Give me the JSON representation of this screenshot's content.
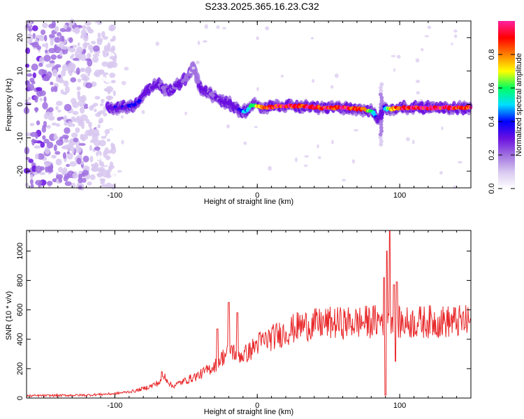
{
  "figure_title": "S233.2025.365.16.23.C32",
  "chart_data": [
    {
      "type": "heatmap",
      "title": "S233.2025.365.16.23.C32",
      "xlabel": "Height of straight line (km)",
      "ylabel": "Frequency (Hz)",
      "xlim": [
        -162,
        150
      ],
      "ylim": [
        -25,
        25
      ],
      "x_ticks": [
        -100,
        0,
        100
      ],
      "y_ticks": [
        -20,
        -10,
        0,
        10,
        20
      ],
      "x_tick_labels": [
        "-100",
        "0",
        "100"
      ],
      "y_tick_labels": [
        "-20",
        "-10",
        "0",
        "10",
        "20"
      ],
      "colormap": [
        "#ffffff",
        "#d8c8f0",
        "#a070e0",
        "#6a10e0",
        "#0000ff",
        "#00e0ff",
        "#00ff60",
        "#ffff00",
        "#ff8000",
        "#ff0000",
        "#ff20a0"
      ],
      "colorbar": {
        "label": "Normalized spectral amplitude",
        "range": [
          0.0,
          1.0
        ],
        "ticks": [
          0.0,
          0.2,
          0.4,
          0.6,
          0.8
        ],
        "tick_labels": [
          "0.0",
          "0.2",
          "0.4",
          "0.6",
          "0.8"
        ]
      },
      "ridge": {
        "description_points_x": [
          -105,
          -95,
          -85,
          -78,
          -70,
          -62,
          -55,
          -50,
          -45,
          -40,
          -32,
          -25,
          -18,
          -12,
          -8,
          -3,
          5,
          15,
          30,
          45,
          60,
          75,
          82,
          85,
          88,
          92,
          100,
          120,
          150
        ],
        "frequency_hz": [
          -1,
          -1,
          0,
          4,
          6,
          4,
          6,
          8,
          11,
          5,
          3,
          1,
          0,
          -2,
          -2,
          0,
          -1,
          -0.5,
          -0.5,
          -1,
          -1,
          -1.5,
          -2.5,
          -5,
          -1,
          -1.5,
          -1,
          -1,
          -1
        ],
        "amplitude": [
          0.3,
          0.35,
          0.4,
          0.3,
          0.25,
          0.25,
          0.3,
          0.2,
          0.15,
          0.3,
          0.25,
          0.3,
          0.3,
          0.35,
          0.5,
          0.6,
          0.85,
          0.95,
          0.95,
          0.9,
          0.95,
          0.85,
          0.5,
          0.3,
          0.3,
          0.7,
          0.9,
          0.95,
          0.95
        ]
      },
      "noise_region_x": [
        -162,
        -100
      ]
    },
    {
      "type": "line",
      "xlabel": "Height of straight line (km)",
      "ylabel": "SNR (10 * v/v)",
      "xlim": [
        -162,
        150
      ],
      "ylim": [
        0,
        1140
      ],
      "x_ticks": [
        -100,
        0,
        100
      ],
      "y_ticks": [
        0,
        200,
        400,
        600,
        800,
        1000
      ],
      "x_tick_labels": [
        "-100",
        "0",
        "100"
      ],
      "y_tick_labels": [
        "0",
        "200",
        "400",
        "600",
        "800",
        "1000"
      ],
      "line_color": "#e8282a",
      "series": [
        {
          "name": "SNR",
          "envelope_x": [
            -162,
            -120,
            -100,
            -85,
            -75,
            -68,
            -65,
            -60,
            -50,
            -40,
            -30,
            -22,
            -20,
            -15,
            -10,
            -5,
            0,
            10,
            20,
            30,
            40,
            50,
            60,
            70,
            80,
            85,
            88,
            90,
            92,
            95,
            98,
            100,
            110,
            120,
            130,
            140,
            150
          ],
          "envelope_y": [
            15,
            20,
            30,
            50,
            80,
            110,
            150,
            80,
            120,
            160,
            220,
            300,
            350,
            300,
            290,
            320,
            370,
            410,
            450,
            490,
            500,
            510,
            510,
            515,
            520,
            525,
            540,
            500,
            560,
            560,
            520,
            510,
            515,
            520,
            520,
            520,
            520
          ],
          "spikes": [
            {
              "x": -67,
              "y": 180
            },
            {
              "x": -28,
              "y": 470
            },
            {
              "x": -20,
              "y": 650
            },
            {
              "x": -14,
              "y": 580
            },
            {
              "x": 89,
              "y": 820
            },
            {
              "x": 90,
              "y": 20
            },
            {
              "x": 91,
              "y": 1000
            },
            {
              "x": 93,
              "y": 1140
            },
            {
              "x": 96,
              "y": 770
            },
            {
              "x": 98,
              "y": 790
            },
            {
              "x": 97,
              "y": 250
            }
          ]
        }
      ]
    }
  ]
}
